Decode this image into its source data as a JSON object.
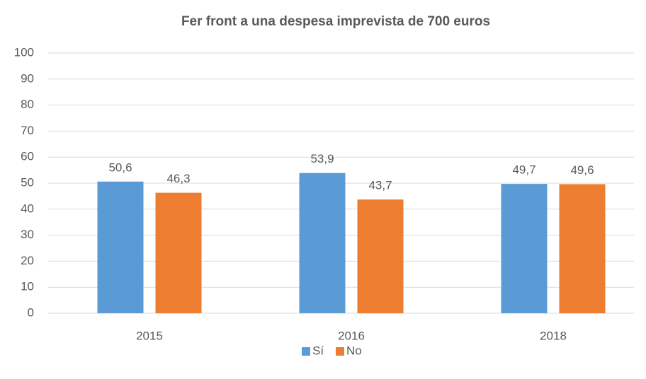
{
  "chart_data": {
    "type": "bar",
    "title": "Fer front a una despesa imprevista de 700 euros",
    "categories": [
      "2015",
      "2016",
      "2018"
    ],
    "series": [
      {
        "name": "Sí",
        "color": "#5b9bd5",
        "values": [
          50.6,
          53.9,
          49.7
        ],
        "value_labels": [
          "50,6",
          "53,9",
          "49,7"
        ]
      },
      {
        "name": "No",
        "color": "#ed7d31",
        "values": [
          46.3,
          43.7,
          49.6
        ],
        "value_labels": [
          "46,3",
          "43,7",
          "49,6"
        ]
      }
    ],
    "ylim": [
      0,
      100
    ],
    "yticks": [
      0,
      10,
      20,
      30,
      40,
      50,
      60,
      70,
      80,
      90,
      100
    ],
    "grid": true,
    "legend": "bottom"
  }
}
